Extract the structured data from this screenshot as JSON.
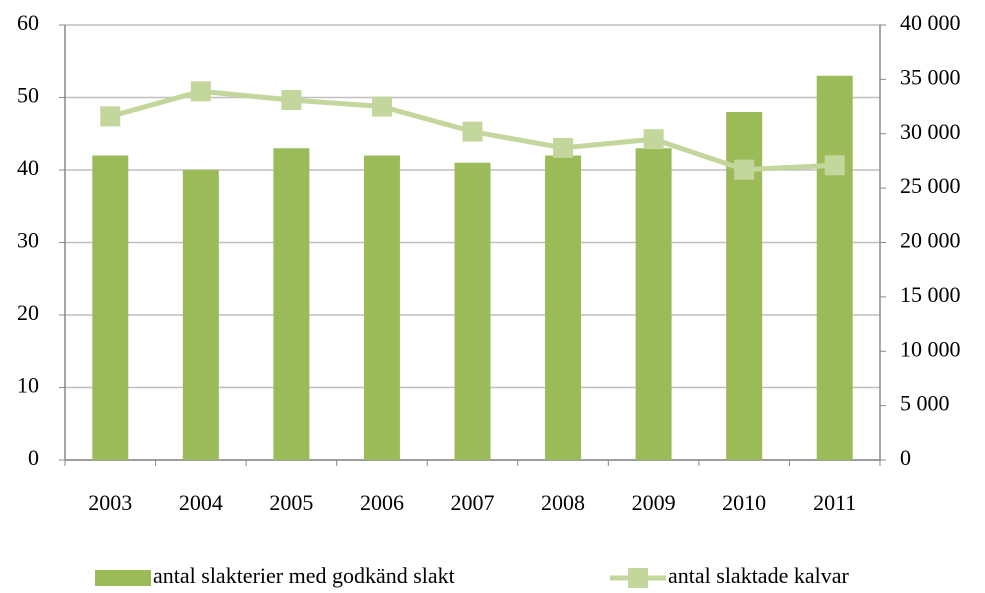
{
  "chart_data": {
    "type": "bar_line",
    "categories": [
      "2003",
      "2004",
      "2005",
      "2006",
      "2007",
      "2008",
      "2009",
      "2010",
      "2011"
    ],
    "series": [
      {
        "name": "antal slakterier med godkänd slakt",
        "type": "bar",
        "color": "#9bbb59",
        "values": [
          42,
          40,
          43,
          42,
          41,
          42,
          43,
          48,
          53
        ]
      },
      {
        "name": "antal slaktade kalvar",
        "type": "line",
        "axis": "y2",
        "color": "#c3d69b",
        "values": [
          31600,
          33900,
          33100,
          32500,
          30200,
          28700,
          29500,
          26700,
          27100
        ]
      }
    ],
    "ylim": [
      0,
      60
    ],
    "yticks": [
      0,
      10,
      20,
      30,
      40,
      50,
      60
    ],
    "y2lim": [
      0,
      40000
    ],
    "y2ticks": [
      0,
      {
        "value": 5000,
        "label": "5 000"
      },
      {
        "value": 10000,
        "label": "10 000"
      },
      {
        "value": 15000,
        "label": "15 000"
      },
      {
        "value": 20000,
        "label": "20 000"
      },
      {
        "value": 25000,
        "label": "25 000"
      },
      {
        "value": 30000,
        "label": "30 000"
      },
      {
        "value": 35000,
        "label": "35 000"
      },
      {
        "value": 40000,
        "label": "40 000"
      }
    ],
    "grid": true,
    "legend": "bottom"
  }
}
